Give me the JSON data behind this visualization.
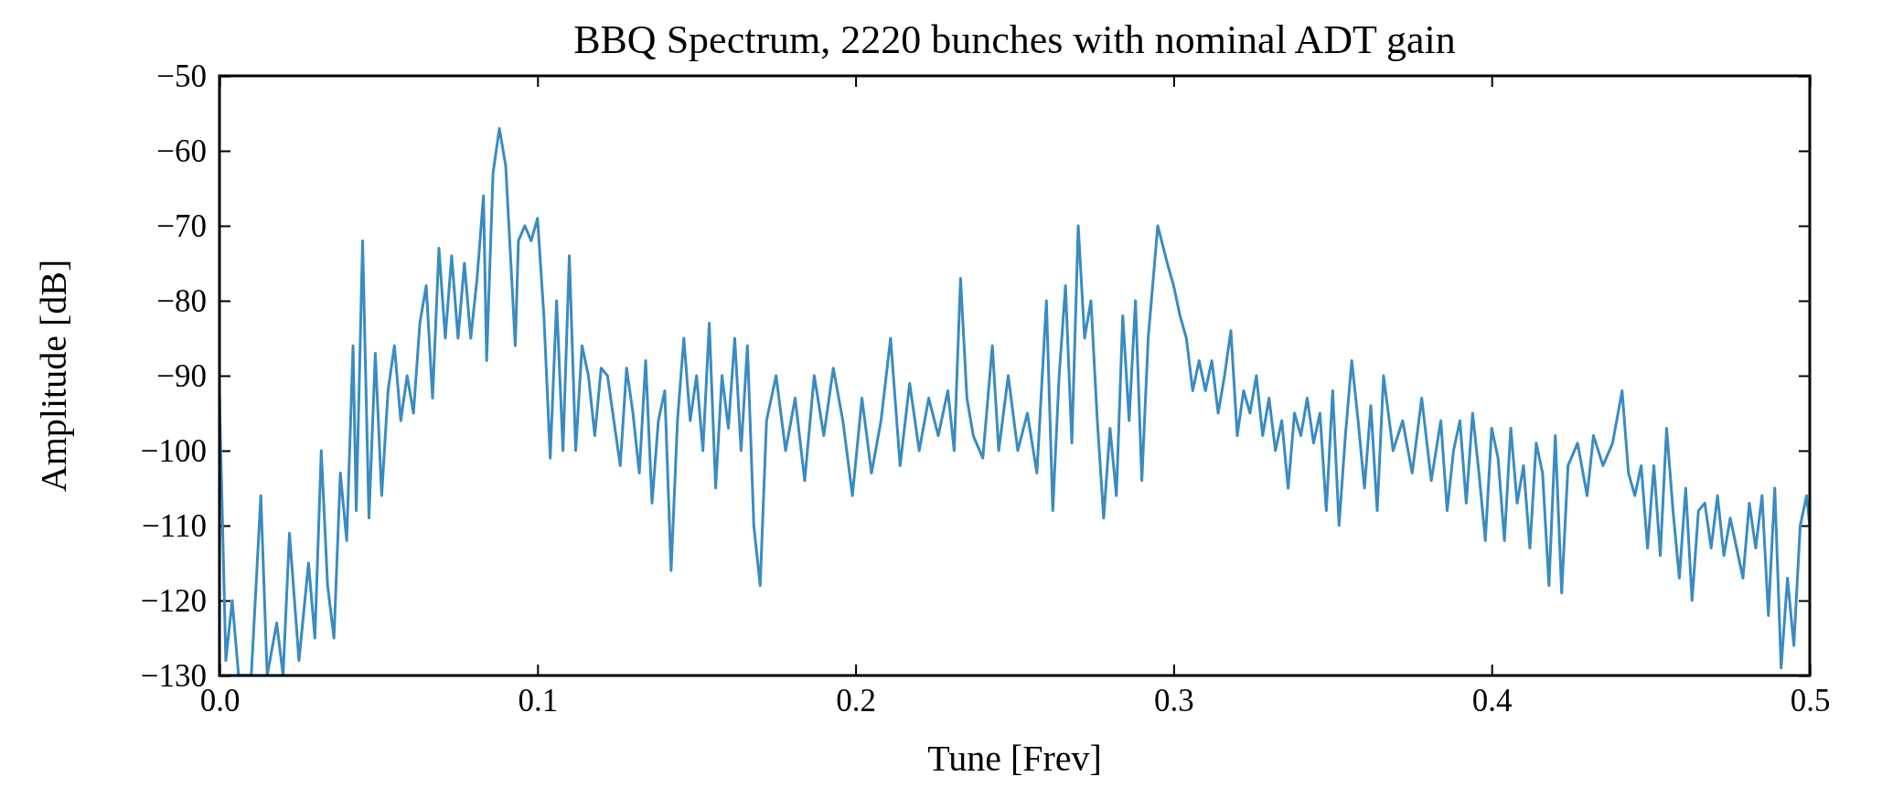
{
  "chart_data": {
    "type": "line",
    "title": "BBQ Spectrum, 2220 bunches with nominal ADT gain",
    "xlabel": "Tune [Frev]",
    "ylabel": "Amplitude [dB]",
    "xlim": [
      0,
      0.5
    ],
    "ylim": [
      -130,
      -50
    ],
    "xticks": [
      {
        "value": 0,
        "label": "0.0"
      },
      0.1,
      0.2,
      0.3,
      0.4,
      {
        "value": 0.5,
        "label": "0.5"
      }
    ],
    "yticks": [
      {
        "value": -130,
        "label": "−130"
      },
      {
        "value": -120,
        "label": "−120"
      },
      {
        "value": -110,
        "label": "−110"
      },
      {
        "value": -100,
        "label": "−100"
      },
      {
        "value": -90,
        "label": "−90"
      },
      {
        "value": -80,
        "label": "−80"
      },
      {
        "value": -70,
        "label": "−70"
      },
      {
        "value": -60,
        "label": "−60"
      },
      {
        "value": -50,
        "label": "−50"
      }
    ],
    "grid": false,
    "series": [
      {
        "color": "#3a8bc2",
        "x": [
          0,
          0.002,
          0.004,
          0.006,
          0.01,
          0.013,
          0.015,
          0.018,
          0.02,
          0.022,
          0.025,
          0.028,
          0.03,
          0.032,
          0.034,
          0.036,
          0.038,
          0.04,
          0.042,
          0.043,
          0.045,
          0.047,
          0.049,
          0.051,
          0.053,
          0.055,
          0.057,
          0.059,
          0.061,
          0.063,
          0.065,
          0.067,
          0.069,
          0.071,
          0.073,
          0.075,
          0.077,
          0.079,
          0.081,
          0.083,
          0.084,
          0.086,
          0.088,
          0.09,
          0.091,
          0.093,
          0.094,
          0.096,
          0.098,
          0.1,
          0.102,
          0.104,
          0.106,
          0.108,
          0.11,
          0.112,
          0.114,
          0.116,
          0.118,
          0.12,
          0.122,
          0.124,
          0.126,
          0.128,
          0.13,
          0.132,
          0.134,
          0.136,
          0.138,
          0.14,
          0.142,
          0.144,
          0.146,
          0.148,
          0.15,
          0.152,
          0.154,
          0.156,
          0.158,
          0.16,
          0.162,
          0.164,
          0.166,
          0.168,
          0.17,
          0.172,
          0.175,
          0.178,
          0.181,
          0.184,
          0.187,
          0.19,
          0.193,
          0.196,
          0.199,
          0.202,
          0.205,
          0.208,
          0.211,
          0.214,
          0.217,
          0.22,
          0.223,
          0.226,
          0.229,
          0.231,
          0.233,
          0.235,
          0.237,
          0.24,
          0.243,
          0.245,
          0.248,
          0.251,
          0.254,
          0.257,
          0.26,
          0.262,
          0.264,
          0.266,
          0.268,
          0.27,
          0.272,
          0.274,
          0.276,
          0.278,
          0.28,
          0.282,
          0.284,
          0.286,
          0.288,
          0.29,
          0.292,
          0.295,
          0.298,
          0.3,
          0.302,
          0.304,
          0.306,
          0.308,
          0.31,
          0.312,
          0.314,
          0.316,
          0.318,
          0.32,
          0.322,
          0.324,
          0.326,
          0.328,
          0.33,
          0.332,
          0.334,
          0.336,
          0.338,
          0.34,
          0.342,
          0.344,
          0.346,
          0.348,
          0.35,
          0.352,
          0.354,
          0.356,
          0.358,
          0.36,
          0.362,
          0.364,
          0.366,
          0.369,
          0.372,
          0.375,
          0.378,
          0.381,
          0.384,
          0.386,
          0.388,
          0.39,
          0.392,
          0.394,
          0.396,
          0.398,
          0.4,
          0.402,
          0.404,
          0.406,
          0.408,
          0.41,
          0.412,
          0.414,
          0.416,
          0.418,
          0.42,
          0.422,
          0.424,
          0.427,
          0.43,
          0.432,
          0.435,
          0.438,
          0.441,
          0.443,
          0.445,
          0.447,
          0.449,
          0.451,
          0.453,
          0.455,
          0.457,
          0.459,
          0.461,
          0.463,
          0.465,
          0.467,
          0.469,
          0.471,
          0.473,
          0.475,
          0.477,
          0.479,
          0.481,
          0.483,
          0.485,
          0.487,
          0.489,
          0.491,
          0.493,
          0.495,
          0.497,
          0.499,
          0.5
        ],
        "values": [
          -93,
          -128,
          -120,
          -130,
          -130,
          -106,
          -130,
          -123,
          -130,
          -111,
          -128,
          -115,
          -125,
          -100,
          -118,
          -125,
          -103,
          -112,
          -86,
          -108,
          -72,
          -109,
          -87,
          -106,
          -92,
          -86,
          -96,
          -90,
          -95,
          -83,
          -78,
          -93,
          -73,
          -85,
          -74,
          -85,
          -75,
          -85,
          -77,
          -66,
          -88,
          -63,
          -57,
          -62,
          -70,
          -86,
          -72,
          -70,
          -72,
          -69,
          -82,
          -101,
          -80,
          -100,
          -74,
          -100,
          -86,
          -90,
          -98,
          -89,
          -90,
          -96,
          -102,
          -89,
          -95,
          -103,
          -88,
          -107,
          -96,
          -92,
          -116,
          -96,
          -85,
          -96,
          -90,
          -100,
          -83,
          -105,
          -90,
          -97,
          -85,
          -100,
          -86,
          -110,
          -118,
          -96,
          -90,
          -100,
          -93,
          -104,
          -90,
          -98,
          -89,
          -96,
          -106,
          -93,
          -103,
          -96,
          -85,
          -102,
          -91,
          -100,
          -93,
          -98,
          -92,
          -100,
          -77,
          -93,
          -98,
          -101,
          -86,
          -100,
          -90,
          -100,
          -95,
          -103,
          -80,
          -108,
          -90,
          -78,
          -99,
          -70,
          -85,
          -80,
          -96,
          -109,
          -97,
          -106,
          -82,
          -96,
          -80,
          -104,
          -85,
          -70,
          -75,
          -78,
          -82,
          -85,
          -92,
          -88,
          -92,
          -88,
          -95,
          -90,
          -84,
          -98,
          -92,
          -95,
          -90,
          -98,
          -93,
          -100,
          -96,
          -105,
          -95,
          -98,
          -93,
          -99,
          -95,
          -108,
          -92,
          -110,
          -98,
          -88,
          -96,
          -105,
          -94,
          -108,
          -90,
          -100,
          -96,
          -103,
          -93,
          -104,
          -96,
          -108,
          -100,
          -96,
          -107,
          -95,
          -103,
          -112,
          -97,
          -101,
          -112,
          -97,
          -107,
          -102,
          -113,
          -99,
          -103,
          -118,
          -98,
          -119,
          -102,
          -99,
          -106,
          -98,
          -102,
          -99,
          -92,
          -103,
          -106,
          -102,
          -113,
          -102,
          -114,
          -97,
          -108,
          -117,
          -105,
          -120,
          -108,
          -107,
          -113,
          -106,
          -114,
          -109,
          -113,
          -117,
          -107,
          -113,
          -106,
          -122,
          -105,
          -129,
          -117,
          -126,
          -110,
          -106,
          -110
        ]
      }
    ]
  }
}
